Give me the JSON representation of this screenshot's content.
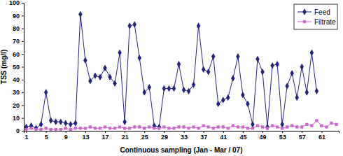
{
  "chart_data": {
    "type": "line",
    "x_label": "Continuous sampling (Jan - Mar / 07)",
    "y_label": "TSS (mg/l)",
    "x": [
      1,
      2,
      3,
      4,
      5,
      6,
      7,
      8,
      9,
      10,
      11,
      12,
      13,
      14,
      15,
      16,
      17,
      18,
      19,
      20,
      21,
      22,
      23,
      24,
      25,
      26,
      27,
      28,
      29,
      30,
      31,
      32,
      33,
      34,
      35,
      36,
      37,
      38,
      39,
      40,
      41,
      42,
      43,
      44,
      45,
      46,
      47,
      48,
      49,
      50,
      51,
      52,
      53,
      54,
      55,
      56,
      57,
      58,
      59,
      60,
      61,
      62,
      63,
      64
    ],
    "series": [
      {
        "name": "Feed",
        "color": "#23237a",
        "marker": "diamond",
        "line_style": "solid",
        "values": [
          3,
          4,
          2,
          5,
          30,
          8,
          7,
          7,
          6,
          5,
          6,
          91,
          55,
          39,
          43,
          42,
          49,
          42,
          37,
          61,
          7,
          82,
          83,
          57,
          30,
          34,
          4,
          3,
          33,
          33,
          33,
          52,
          32,
          31,
          36,
          82,
          48,
          46,
          58,
          21,
          24,
          26,
          41,
          58,
          28,
          21,
          5,
          56,
          46,
          3,
          51,
          52,
          5,
          35,
          45,
          26,
          50,
          30,
          61,
          31,
          null,
          null,
          null,
          null
        ]
      },
      {
        "name": "Filtrate",
        "color": "#cc66cc",
        "marker": "square",
        "line_style": "solid",
        "values": [
          1,
          2,
          1,
          1,
          2,
          1,
          1,
          1,
          2,
          1,
          2,
          2,
          2,
          3,
          2,
          2,
          3,
          2,
          2,
          3,
          2,
          2,
          3,
          3,
          2,
          3,
          2,
          2,
          3,
          2,
          2,
          3,
          3,
          2,
          3,
          2,
          4,
          3,
          2,
          3,
          3,
          2,
          4,
          3,
          3,
          2,
          2,
          4,
          3,
          2,
          4,
          3,
          2,
          3,
          4,
          3,
          3,
          5,
          4,
          8,
          4,
          3,
          6,
          5
        ]
      }
    ],
    "xlim": [
      0.5,
      64.5
    ],
    "xticks": [
      1,
      5,
      9,
      13,
      17,
      21,
      25,
      29,
      33,
      37,
      41,
      45,
      49,
      53,
      57,
      61
    ],
    "ylim": [
      0,
      100
    ],
    "yticks": [
      0,
      10,
      20,
      30,
      40,
      50,
      60,
      70,
      80,
      90,
      100
    ],
    "grid": false,
    "legend": "top-right"
  }
}
